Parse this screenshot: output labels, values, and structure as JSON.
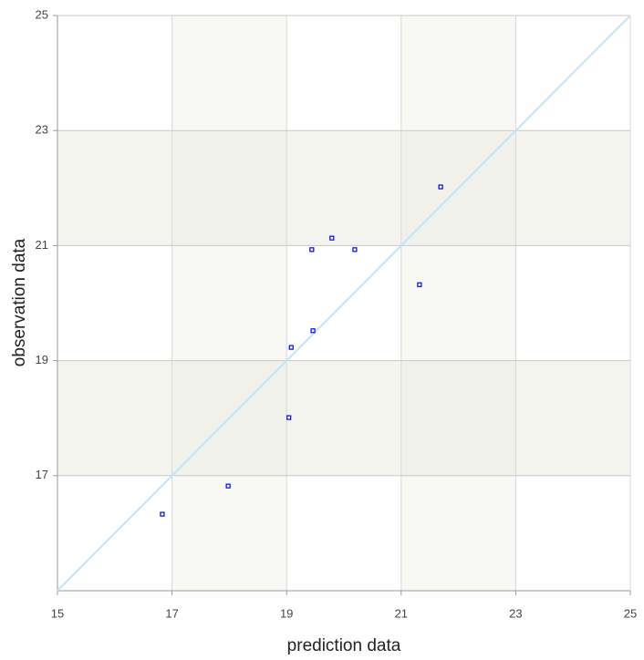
{
  "chart_data": {
    "type": "scatter",
    "x_label": "prediction data",
    "y_label": "observation data",
    "x": [
      16.83,
      17.98,
      19.04,
      19.08,
      19.46,
      19.44,
      19.79,
      20.19,
      21.32,
      21.69
    ],
    "values": [
      16.33,
      16.82,
      18.01,
      19.23,
      19.52,
      20.93,
      21.13,
      20.93,
      20.32,
      22.02
    ],
    "color": "#0000ff",
    "identity_line": true,
    "identity_line_color": "#c6e2f5",
    "xlim": [
      15,
      25
    ],
    "xticks": [
      15,
      17,
      19,
      21,
      23,
      25
    ],
    "ylim": [
      15,
      25
    ],
    "yticks": [
      17,
      19,
      21,
      23,
      25
    ],
    "grid": true
  }
}
